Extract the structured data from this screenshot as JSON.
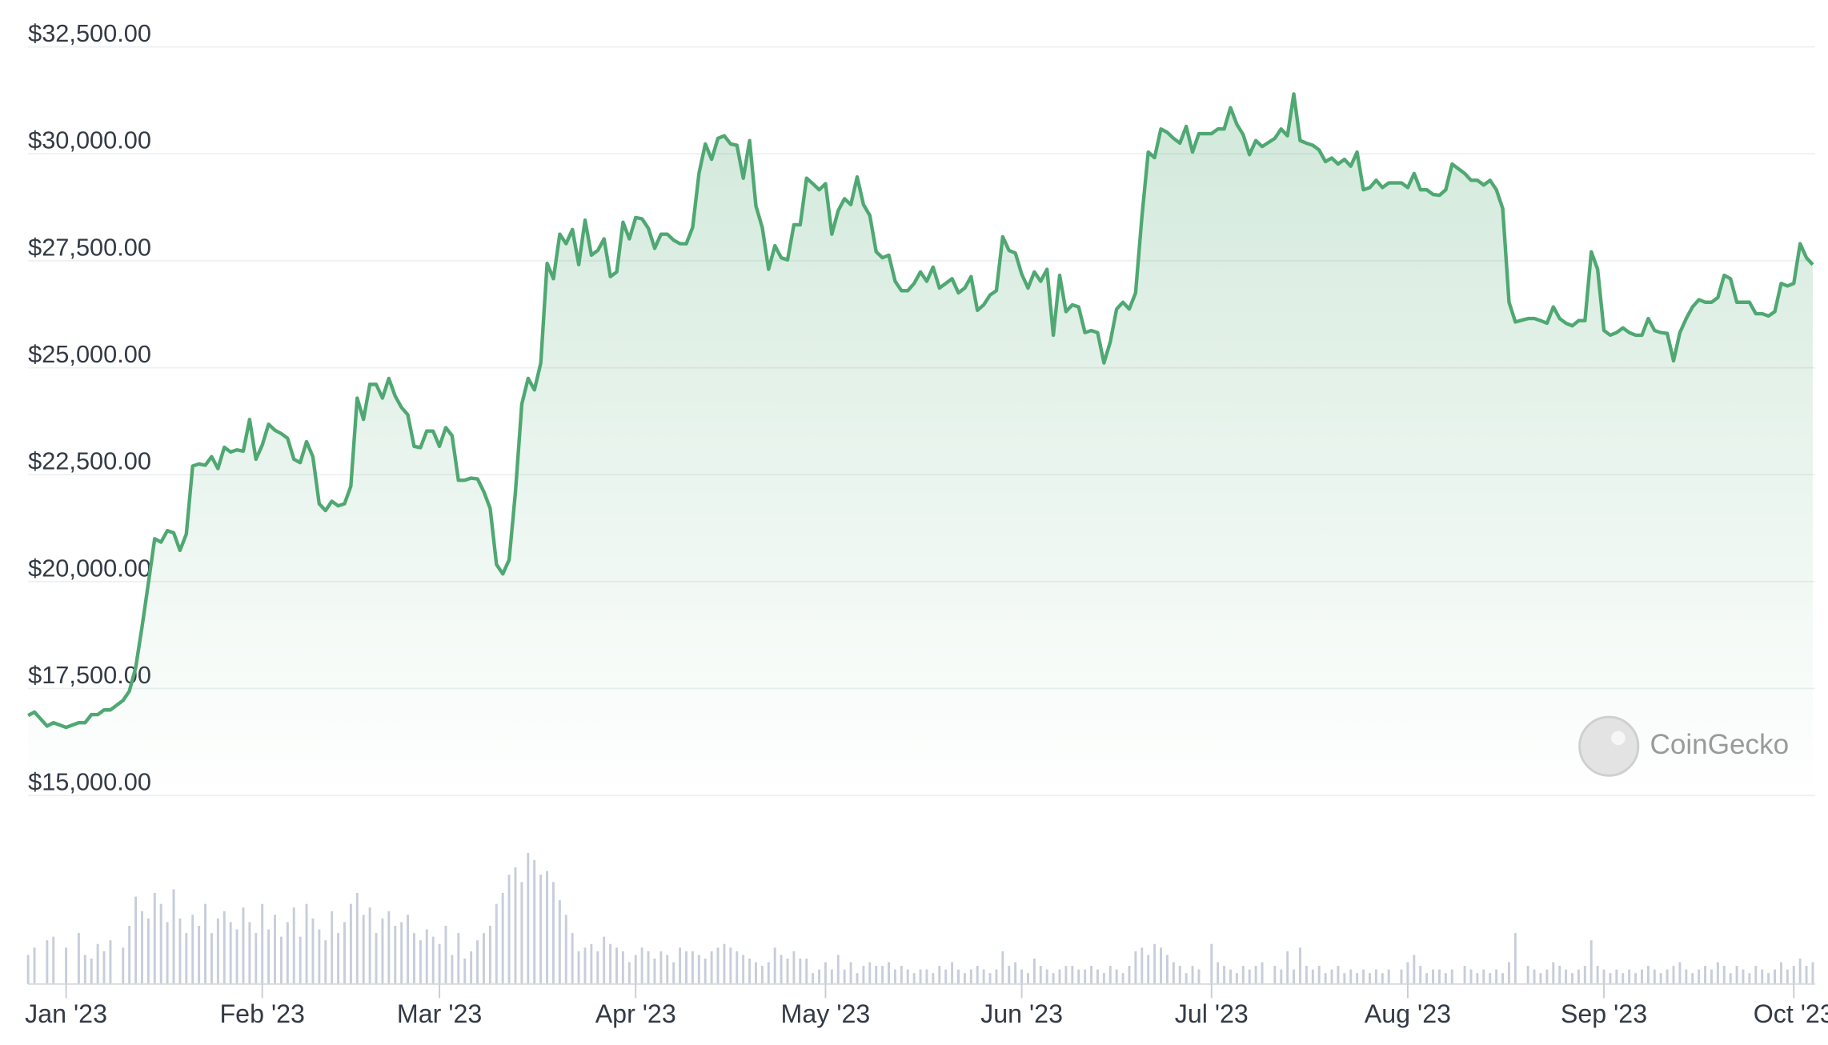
{
  "chart_data": {
    "type": "area",
    "watermark": "CoinGecko",
    "color": "#4fa872",
    "volume_color": "#c7cdda",
    "grid": true,
    "xlim": [
      -6,
      276
    ],
    "ylim": [
      15000,
      32500
    ],
    "yticks": [
      {
        "value": 15000,
        "label": "$15,000.00"
      },
      {
        "value": 17500,
        "label": "$17,500.00"
      },
      {
        "value": 20000,
        "label": "$20,000.00"
      },
      {
        "value": 22500,
        "label": "$22,500.00"
      },
      {
        "value": 25000,
        "label": "$25,000.00"
      },
      {
        "value": 27500,
        "label": "$27,500.00"
      },
      {
        "value": 30000,
        "label": "$30,000.00"
      },
      {
        "value": 32500,
        "label": "$32,500.00"
      }
    ],
    "xticks": [
      {
        "value": 0,
        "label": "Jan '23"
      },
      {
        "value": 31,
        "label": "Feb '23"
      },
      {
        "value": 59,
        "label": "Mar '23"
      },
      {
        "value": 90,
        "label": "Apr '23"
      },
      {
        "value": 120,
        "label": "May '23"
      },
      {
        "value": 151,
        "label": "Jun '23"
      },
      {
        "value": 181,
        "label": "Jul '23"
      },
      {
        "value": 212,
        "label": "Aug '23"
      },
      {
        "value": 243,
        "label": "Sep '23"
      },
      {
        "value": 273,
        "label": "Oct '23"
      }
    ],
    "x": [
      -6,
      -5,
      -3,
      -2,
      0,
      2,
      3,
      4,
      5,
      6,
      7,
      9,
      10,
      11,
      12,
      13,
      14,
      15,
      16,
      17,
      18,
      19,
      20,
      21,
      22,
      23,
      24,
      25,
      26,
      27,
      28,
      29,
      30,
      31,
      32,
      33,
      34,
      35,
      36,
      37,
      38,
      39,
      40,
      41,
      42,
      43,
      44,
      45,
      46,
      47,
      48,
      49,
      50,
      51,
      52,
      53,
      54,
      55,
      56,
      57,
      58,
      59,
      60,
      61,
      62,
      63,
      64,
      65,
      66,
      67,
      68,
      69,
      70,
      71,
      72,
      73,
      74,
      75,
      76,
      77,
      78,
      79,
      80,
      81,
      82,
      83,
      84,
      85,
      86,
      87,
      88,
      89,
      90,
      91,
      92,
      93,
      94,
      95,
      96,
      97,
      98,
      99,
      100,
      101,
      102,
      103,
      104,
      105,
      106,
      107,
      108,
      109,
      110,
      111,
      112,
      113,
      114,
      115,
      116,
      117,
      118,
      119,
      120,
      121,
      122,
      123,
      124,
      125,
      126,
      127,
      128,
      129,
      130,
      131,
      132,
      133,
      134,
      135,
      136,
      137,
      138,
      139,
      140,
      141,
      142,
      143,
      144,
      145,
      146,
      147,
      148,
      149,
      150,
      151,
      152,
      153,
      154,
      155,
      156,
      157,
      158,
      159,
      160,
      161,
      162,
      163,
      164,
      165,
      166,
      167,
      168,
      169,
      170,
      171,
      172,
      173,
      174,
      175,
      176,
      177,
      178,
      179,
      181,
      182,
      183,
      184,
      185,
      186,
      187,
      188,
      189,
      191,
      192,
      193,
      194,
      195,
      196,
      197,
      198,
      199,
      200,
      201,
      202,
      203,
      204,
      205,
      206,
      207,
      208,
      209,
      211,
      212,
      213,
      214,
      215,
      216,
      217,
      218,
      219,
      221,
      222,
      223,
      224,
      225,
      226,
      227,
      228,
      229,
      231,
      232,
      233,
      234,
      235,
      236,
      237,
      238,
      239,
      240,
      241,
      242,
      243,
      244,
      245,
      246,
      247,
      248,
      249,
      250,
      251,
      252,
      253,
      254,
      255,
      256,
      257,
      258,
      259,
      260,
      261,
      262,
      263,
      264,
      265,
      266,
      267,
      268,
      269,
      270,
      271,
      272,
      273,
      274,
      275,
      276
    ],
    "values": [
      16870,
      16950,
      16620,
      16700,
      16590,
      16700,
      16700,
      16890,
      16890,
      17000,
      17000,
      17220,
      17440,
      17990,
      18940,
      19960,
      21000,
      20920,
      21190,
      21140,
      20730,
      21110,
      22700,
      22750,
      22720,
      22920,
      22640,
      23140,
      23030,
      23080,
      23050,
      23790,
      22860,
      23190,
      23680,
      23540,
      23460,
      23350,
      22860,
      22780,
      23270,
      22920,
      21820,
      21660,
      21880,
      21770,
      21820,
      22230,
      24290,
      23790,
      24610,
      24610,
      24290,
      24750,
      24340,
      24070,
      23900,
      23160,
      23130,
      23520,
      23520,
      23160,
      23600,
      23410,
      22370,
      22370,
      22420,
      22400,
      22100,
      21710,
      20400,
      20180,
      20510,
      22100,
      24150,
      24750,
      24480,
      25110,
      27440,
      27080,
      28120,
      27900,
      28230,
      27410,
      28450,
      27630,
      27740,
      28010,
      27130,
      27240,
      28400,
      28010,
      28510,
      28480,
      28260,
      27790,
      28120,
      28120,
      27980,
      27900,
      27900,
      28280,
      29540,
      30230,
      29870,
      30360,
      30420,
      30230,
      30200,
      29430,
      30310,
      28780,
      28280,
      27300,
      27850,
      27570,
      27520,
      28340,
      28340,
      29430,
      29300,
      29160,
      29300,
      28120,
      28670,
      28950,
      28810,
      29460,
      28810,
      28560,
      27710,
      27570,
      27630,
      27020,
      26800,
      26800,
      26970,
      27240,
      27020,
      27350,
      26860,
      26970,
      27080,
      26750,
      26860,
      27130,
      26340,
      26470,
      26700,
      26800,
      28060,
      27740,
      27680,
      27190,
      26860,
      27240,
      27020,
      27300,
      25760,
      27160,
      26310,
      26470,
      26420,
      25820,
      25870,
      25820,
      25110,
      25600,
      26370,
      26530,
      26370,
      26750,
      28530,
      30040,
      29910,
      30580,
      30500,
      30360,
      30250,
      30640,
      30040,
      30470,
      30470,
      30580,
      30580,
      31080,
      30690,
      30450,
      29980,
      30310,
      30170,
      30360,
      30580,
      30420,
      31400,
      30310,
      30250,
      30200,
      30090,
      29820,
      29900,
      29760,
      29870,
      29710,
      30040,
      29160,
      29210,
      29380,
      29210,
      29320,
      29320,
      29210,
      29540,
      29160,
      29160,
      29050,
      29030,
      29160,
      29760,
      29540,
      29380,
      29380,
      29270,
      29380,
      29160,
      28720,
      26530,
      26070,
      26150,
      26150,
      26100,
      26040,
      26420,
      26150,
      26040,
      25980,
      26100,
      26100,
      27710,
      27300,
      25870,
      25760,
      25820,
      25930,
      25820,
      25760,
      25760,
      26150,
      25870,
      25820,
      25800,
      25160,
      25820,
      26150,
      26420,
      26590,
      26530,
      26530,
      26640,
      27160,
      27080,
      26530,
      26530,
      26530,
      26260,
      26260,
      26210,
      26310,
      26970,
      26910,
      26970,
      27900,
      27570,
      27410
    ],
    "volume": [
      8,
      10,
      12,
      13,
      10,
      14,
      8,
      7,
      11,
      9,
      12,
      10,
      16,
      24,
      20,
      18,
      25,
      22,
      17,
      26,
      18,
      14,
      19,
      16,
      22,
      14,
      18,
      20,
      17,
      15,
      21,
      17,
      14,
      22,
      15,
      19,
      13,
      17,
      21,
      13,
      22,
      18,
      15,
      12,
      20,
      14,
      17,
      22,
      25,
      19,
      21,
      14,
      18,
      20,
      16,
      17,
      19,
      14,
      12,
      15,
      13,
      11,
      16,
      8,
      14,
      7,
      9,
      12,
      14,
      16,
      22,
      25,
      30,
      32,
      28,
      36,
      34,
      30,
      31,
      28,
      23,
      19,
      14,
      9,
      10,
      11,
      9,
      13,
      11,
      10,
      9,
      6,
      8,
      10,
      9,
      7,
      9,
      8,
      6,
      10,
      9,
      9,
      8,
      7,
      9,
      10,
      11,
      10,
      9,
      8,
      7,
      6,
      5,
      6,
      10,
      8,
      7,
      9,
      7,
      7,
      3,
      4,
      6,
      4,
      8,
      4,
      6,
      3,
      5,
      6,
      5,
      5,
      6,
      4,
      5,
      4,
      3,
      4,
      4,
      3,
      5,
      4,
      6,
      4,
      3,
      4,
      5,
      4,
      3,
      4,
      9,
      5,
      6,
      4,
      3,
      7,
      5,
      4,
      3,
      4,
      5,
      5,
      4,
      4,
      5,
      4,
      3,
      5,
      4,
      3,
      5,
      9,
      10,
      8,
      11,
      10,
      8,
      6,
      5,
      3,
      5,
      4,
      11,
      6,
      5,
      4,
      3,
      5,
      4,
      5,
      6,
      5,
      4,
      9,
      4,
      10,
      5,
      4,
      5,
      3,
      4,
      5,
      3,
      4,
      3,
      4,
      3,
      4,
      3,
      4,
      4,
      6,
      8,
      5,
      3,
      4,
      4,
      3,
      4,
      5,
      4,
      3,
      4,
      3,
      4,
      3,
      6,
      14,
      5,
      4,
      3,
      4,
      6,
      5,
      4,
      3,
      4,
      5,
      12,
      5,
      4,
      3,
      4,
      3,
      4,
      3,
      4,
      5,
      4,
      3,
      4,
      5,
      6,
      4,
      3,
      4,
      5,
      4,
      6,
      5,
      3,
      5,
      4,
      3,
      5,
      4,
      3,
      4,
      6,
      4,
      5,
      7,
      5,
      6
    ]
  }
}
